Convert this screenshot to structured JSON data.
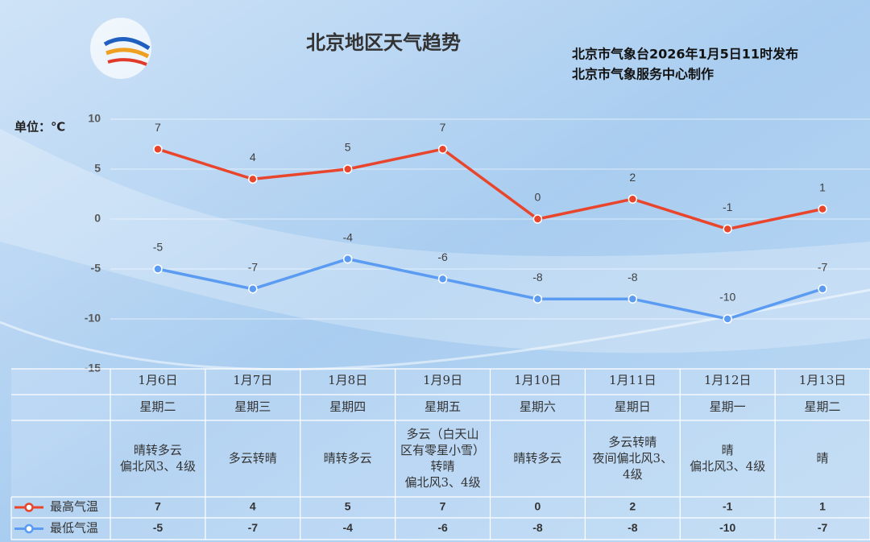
{
  "chart_data": {
    "type": "line",
    "title": "北京地区天气趋势",
    "subtitle": [
      "北京市气象台2026年1月5日11时发布",
      "北京市气象服务中心制作"
    ],
    "unit_label": "单位：℃",
    "categories": [
      "1月6日",
      "1月7日",
      "1月8日",
      "1月9日",
      "1月10日",
      "1月11日",
      "1月12日",
      "1月13日"
    ],
    "weekdays": [
      "星期二",
      "星期三",
      "星期四",
      "星期五",
      "星期六",
      "星期日",
      "星期一",
      "星期二"
    ],
    "weather": [
      [
        "晴转多云",
        "偏北风3、4级"
      ],
      [
        "多云转晴"
      ],
      [
        "晴转多云"
      ],
      [
        "多云（白天山",
        "区有零星小雪）",
        "转晴",
        "偏北风3、4级"
      ],
      [
        "晴转多云"
      ],
      [
        "多云转晴",
        "夜间偏北风3、",
        "4级"
      ],
      [
        "晴",
        "偏北风3、4级"
      ],
      [
        "晴"
      ]
    ],
    "series": [
      {
        "name": "最高气温",
        "color": "#e8452c",
        "values": [
          7,
          4,
          5,
          7,
          0,
          2,
          -1,
          1
        ]
      },
      {
        "name": "最低气温",
        "color": "#5b9cf2",
        "values": [
          -5,
          -7,
          -4,
          -6,
          -8,
          -8,
          -10,
          -7
        ]
      }
    ],
    "ylim": [
      -15,
      10
    ],
    "yticks": [
      -15,
      -10,
      -5,
      0,
      5,
      10
    ],
    "grid": true
  }
}
